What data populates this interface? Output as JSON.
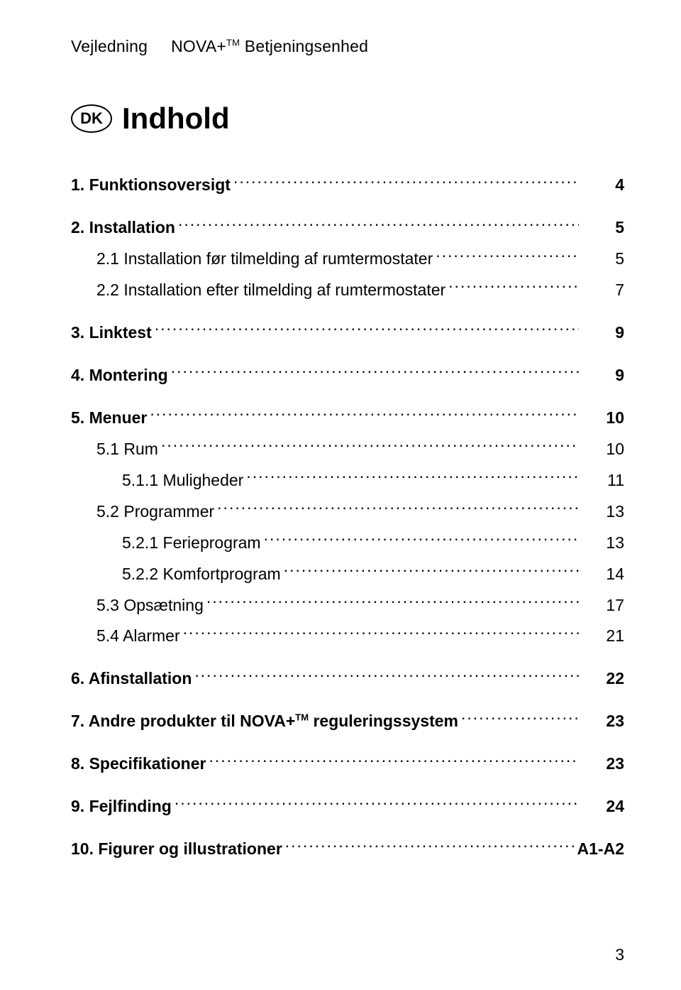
{
  "header": {
    "left": "Vejledning",
    "product": "NOVA+",
    "tm": "TM",
    "right": "Betjeningsenhed"
  },
  "badge": "DK",
  "title": "Indhold",
  "toc": [
    {
      "level": 0,
      "bold": true,
      "spaced": false,
      "label": "1. Funktionsoversigt",
      "page": "4"
    },
    {
      "level": 0,
      "bold": true,
      "spaced": true,
      "label": "2. Installation",
      "page": "5"
    },
    {
      "level": 1,
      "bold": false,
      "spaced": false,
      "label": "2.1 Installation før tilmelding af rumtermostater",
      "page": "5"
    },
    {
      "level": 1,
      "bold": false,
      "spaced": false,
      "label": "2.2 Installation efter tilmelding af rumtermostater",
      "page": "7"
    },
    {
      "level": 0,
      "bold": true,
      "spaced": true,
      "label": "3. Linktest",
      "page": "9"
    },
    {
      "level": 0,
      "bold": true,
      "spaced": true,
      "label": "4. Montering",
      "page": "9"
    },
    {
      "level": 0,
      "bold": true,
      "spaced": true,
      "label": "5. Menuer",
      "page": "10"
    },
    {
      "level": 1,
      "bold": false,
      "spaced": false,
      "label": "5.1 Rum",
      "page": "10"
    },
    {
      "level": 2,
      "bold": false,
      "spaced": false,
      "label": "5.1.1 Muligheder",
      "page": "11"
    },
    {
      "level": 1,
      "bold": false,
      "spaced": false,
      "label": "5.2 Programmer",
      "page": "13"
    },
    {
      "level": 2,
      "bold": false,
      "spaced": false,
      "label": "5.2.1 Ferieprogram",
      "page": "13"
    },
    {
      "level": 2,
      "bold": false,
      "spaced": false,
      "label": "5.2.2 Komfortprogram",
      "page": "14"
    },
    {
      "level": 1,
      "bold": false,
      "spaced": false,
      "label": "5.3 Opsætning",
      "page": "17"
    },
    {
      "level": 1,
      "bold": false,
      "spaced": false,
      "label": "5.4 Alarmer",
      "page": "21"
    },
    {
      "level": 0,
      "bold": true,
      "spaced": true,
      "label": "6. Afinstallation",
      "page": "22"
    },
    {
      "level": 0,
      "bold": true,
      "spaced": true,
      "label": "7. Andre produkter til NOVA+__TM__ reguleringssystem",
      "page": "23"
    },
    {
      "level": 0,
      "bold": true,
      "spaced": true,
      "label": "8. Specifikationer",
      "page": "23"
    },
    {
      "level": 0,
      "bold": true,
      "spaced": true,
      "label": "9. Fejlfinding",
      "page": "24"
    },
    {
      "level": 0,
      "bold": true,
      "spaced": true,
      "label": "10. Figurer og illustrationer",
      "page": "A1-A2"
    }
  ],
  "page_number": "3"
}
